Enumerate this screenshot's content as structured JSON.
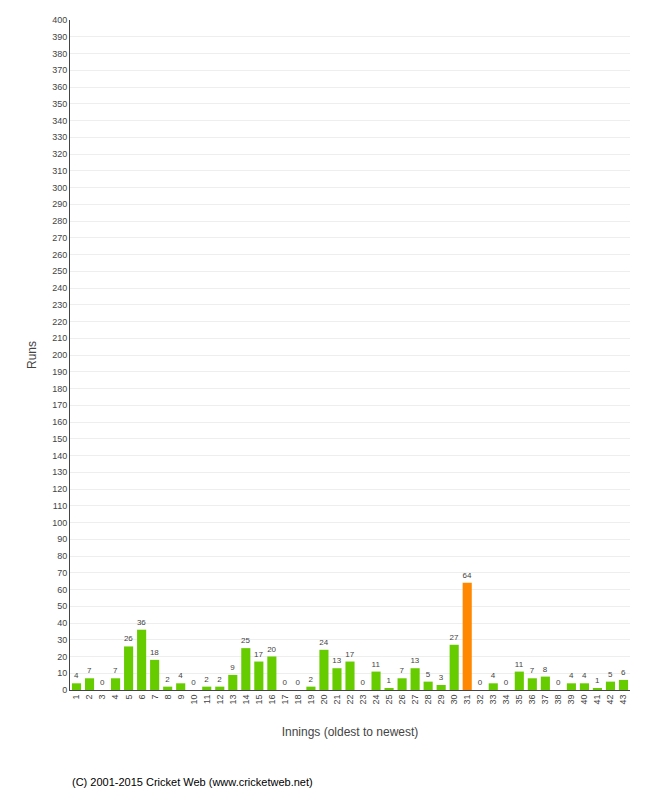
{
  "chart_data": {
    "type": "bar",
    "xlabel": "Innings (oldest to newest)",
    "ylabel": "Runs",
    "categories": [
      "1",
      "2",
      "3",
      "4",
      "5",
      "6",
      "7",
      "8",
      "9",
      "10",
      "11",
      "12",
      "13",
      "14",
      "15",
      "16",
      "17",
      "18",
      "19",
      "20",
      "21",
      "22",
      "23",
      "24",
      "25",
      "26",
      "27",
      "28",
      "29",
      "30",
      "31",
      "32",
      "33",
      "34",
      "35",
      "36",
      "37",
      "38",
      "39",
      "40",
      "41",
      "42",
      "43"
    ],
    "values": [
      4,
      7,
      0,
      7,
      26,
      36,
      18,
      2,
      4,
      0,
      2,
      2,
      9,
      25,
      17,
      20,
      0,
      0,
      2,
      24,
      13,
      17,
      0,
      11,
      1,
      7,
      13,
      5,
      3,
      27,
      64,
      0,
      4,
      0,
      11,
      7,
      8,
      0,
      4,
      4,
      1,
      5,
      6
    ],
    "colors": [
      "#66cc00",
      "#66cc00",
      "#66cc00",
      "#66cc00",
      "#66cc00",
      "#66cc00",
      "#66cc00",
      "#66cc00",
      "#66cc00",
      "#66cc00",
      "#66cc00",
      "#66cc00",
      "#66cc00",
      "#66cc00",
      "#66cc00",
      "#66cc00",
      "#66cc00",
      "#66cc00",
      "#66cc00",
      "#66cc00",
      "#66cc00",
      "#66cc00",
      "#66cc00",
      "#66cc00",
      "#66cc00",
      "#66cc00",
      "#66cc00",
      "#66cc00",
      "#66cc00",
      "#66cc00",
      "#ff8800",
      "#66cc00",
      "#66cc00",
      "#66cc00",
      "#66cc00",
      "#66cc00",
      "#66cc00",
      "#66cc00",
      "#66cc00",
      "#66cc00",
      "#66cc00",
      "#66cc00",
      "#66cc00"
    ],
    "ylim": [
      0,
      400
    ],
    "yticks": [
      0,
      10,
      20,
      30,
      40,
      50,
      60,
      70,
      80,
      90,
      100,
      110,
      120,
      130,
      140,
      150,
      160,
      170,
      180,
      190,
      200,
      210,
      220,
      230,
      240,
      250,
      260,
      270,
      280,
      290,
      300,
      310,
      320,
      330,
      340,
      350,
      360,
      370,
      380,
      390,
      400
    ],
    "grid": true,
    "data_labels": true,
    "annotations": [
      "(C) 2001-2015 Cricket Web (www.cricketweb.net)"
    ]
  }
}
